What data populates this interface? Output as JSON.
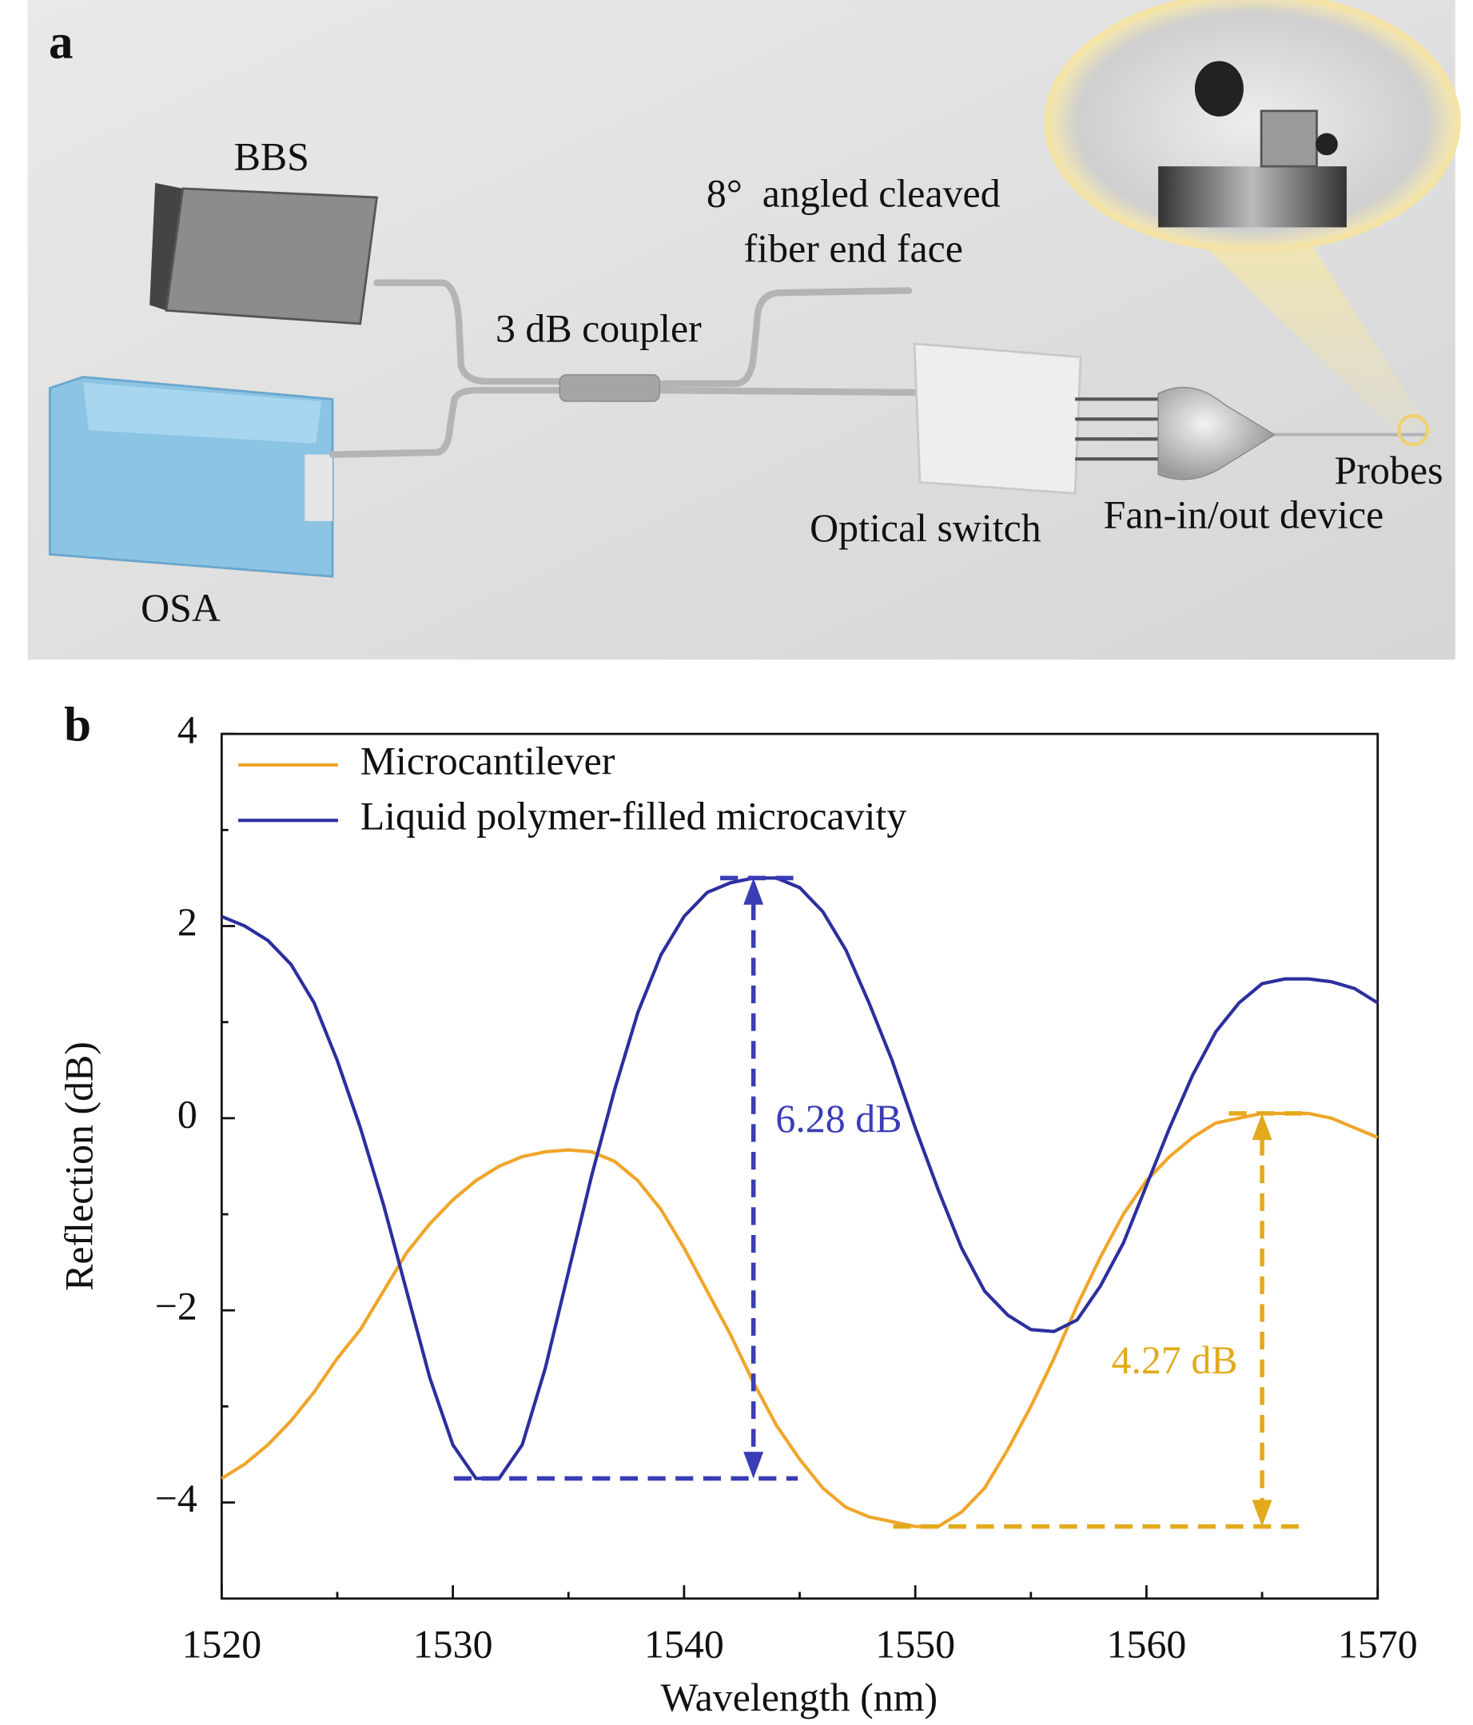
{
  "panel_a": {
    "label": "a",
    "texts": [
      "BBS",
      "8°  angled cleaved",
      "fiber end face",
      "3 dB coupler",
      "Optical switch",
      "Fan-in/out device",
      "Probes",
      "OSA"
    ]
  },
  "panel_b_label": "b",
  "chart_data": {
    "type": "line",
    "xlabel": "Wavelength (nm)",
    "ylabel": "Reflection (dB)",
    "x": [
      1520,
      1521,
      1522,
      1523,
      1524,
      1525,
      1526,
      1527,
      1528,
      1529,
      1530,
      1531,
      1532,
      1533,
      1534,
      1535,
      1536,
      1537,
      1538,
      1539,
      1540,
      1541,
      1542,
      1543,
      1544,
      1545,
      1546,
      1547,
      1548,
      1549,
      1550,
      1551,
      1552,
      1553,
      1554,
      1555,
      1556,
      1557,
      1558,
      1559,
      1560,
      1561,
      1562,
      1563,
      1564,
      1565,
      1566,
      1567,
      1568,
      1569,
      1570
    ],
    "series": [
      {
        "name": "Microcantilever",
        "color": "#f0a52a",
        "values": [
          -3.75,
          -3.6,
          -3.4,
          -3.15,
          -2.85,
          -2.5,
          -2.2,
          -1.8,
          -1.4,
          -1.1,
          -0.85,
          -0.65,
          -0.5,
          -0.4,
          -0.35,
          -0.33,
          -0.35,
          -0.45,
          -0.65,
          -0.95,
          -1.35,
          -1.8,
          -2.25,
          -2.75,
          -3.2,
          -3.55,
          -3.85,
          -4.05,
          -4.15,
          -4.2,
          -4.25,
          -4.25,
          -4.1,
          -3.85,
          -3.45,
          -3.0,
          -2.5,
          -1.95,
          -1.45,
          -1.0,
          -0.65,
          -0.4,
          -0.2,
          -0.05,
          0.0,
          0.05,
          0.05,
          0.05,
          0.0,
          -0.1,
          -0.2
        ]
      },
      {
        "name": "Liquid polymer-filled microcavity",
        "color": "#2b2f9e",
        "values": [
          2.1,
          2.0,
          1.85,
          1.6,
          1.2,
          0.6,
          -0.1,
          -0.9,
          -1.8,
          -2.7,
          -3.4,
          -3.75,
          -3.75,
          -3.4,
          -2.6,
          -1.6,
          -0.6,
          0.3,
          1.1,
          1.7,
          2.1,
          2.35,
          2.45,
          2.5,
          2.5,
          2.4,
          2.15,
          1.75,
          1.2,
          0.6,
          -0.1,
          -0.75,
          -1.35,
          -1.8,
          -2.05,
          -2.2,
          -2.22,
          -2.1,
          -1.75,
          -1.3,
          -0.7,
          -0.1,
          0.45,
          0.9,
          1.2,
          1.4,
          1.45,
          1.45,
          1.42,
          1.35,
          1.2
        ]
      }
    ],
    "annotations": [
      {
        "text": "4.27 dB",
        "color": "#e2aa1c"
      },
      {
        "text": "6.28 dB",
        "color": "#3a3db5"
      }
    ],
    "xlim": [
      1520,
      1570
    ],
    "xticks": [
      1520,
      1530,
      1540,
      1550,
      1560,
      1570
    ],
    "ylim": [
      -5,
      4
    ],
    "yticks": [
      {
        "value": -4,
        "label": "−4"
      },
      {
        "value": -2,
        "label": "−2"
      },
      0,
      2,
      4
    ],
    "legend": "upper left",
    "grid": false
  }
}
